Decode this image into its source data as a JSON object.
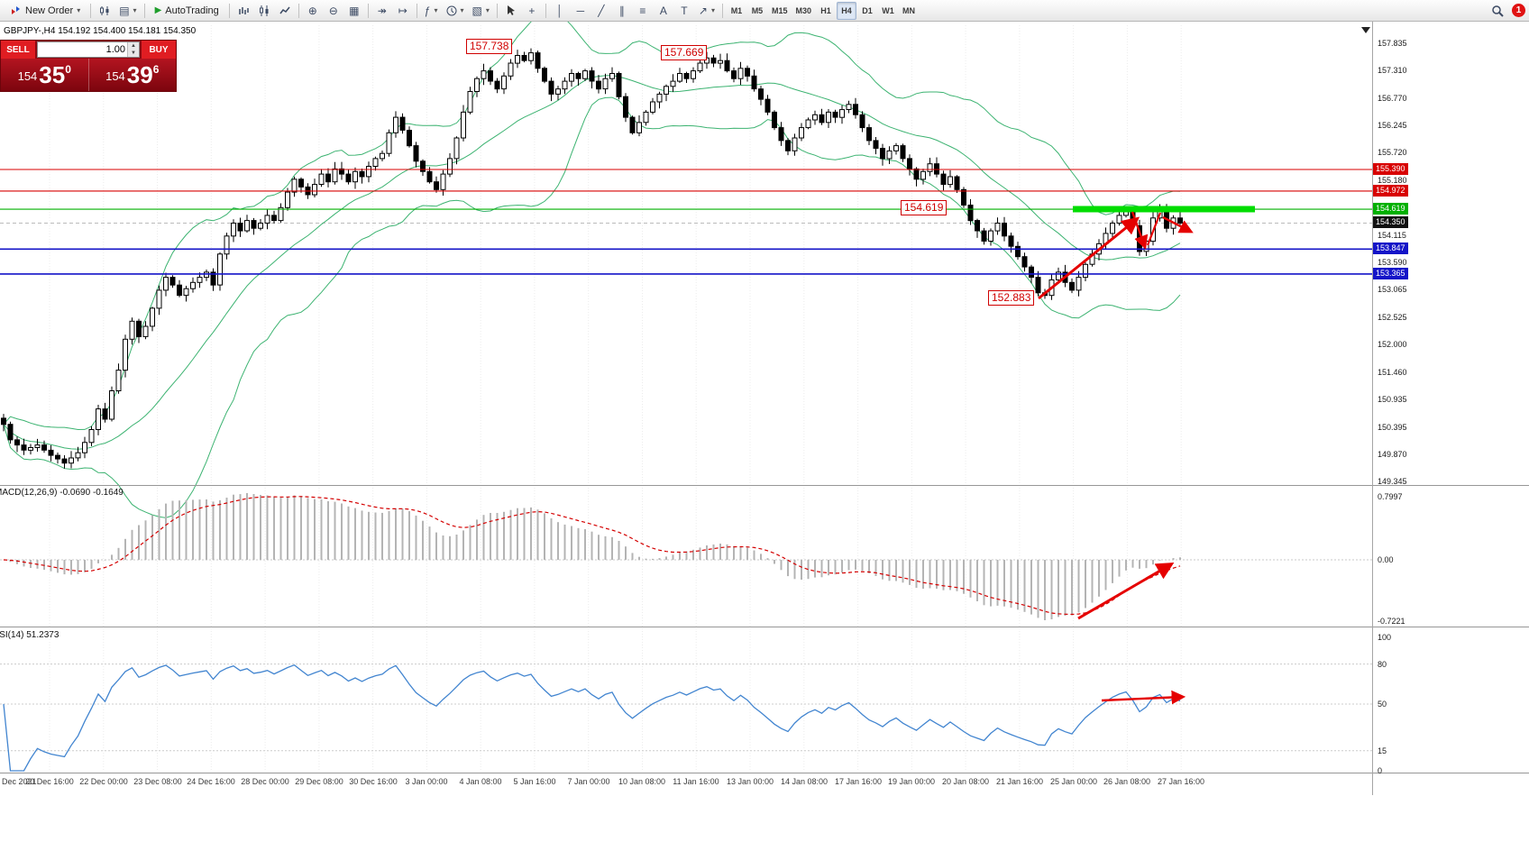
{
  "toolbar": {
    "new_order": "New Order",
    "autotrading": "AutoTrading",
    "timeframes": [
      "M1",
      "M5",
      "M15",
      "M30",
      "H1",
      "H4",
      "D1",
      "W1",
      "MN"
    ],
    "active_timeframe": "H4",
    "notification_count": "1"
  },
  "symbol_header": "GBPJPY-,H4  154.192 154.400 154.181 154.350",
  "trade_panel": {
    "sell_label": "SELL",
    "buy_label": "BUY",
    "volume": "1.00",
    "sell_price": {
      "prefix": "154",
      "big": "35",
      "sup": "0"
    },
    "buy_price": {
      "prefix": "154",
      "big": "39",
      "sup": "6"
    }
  },
  "annotations": [
    {
      "text": "157.738"
    },
    {
      "text": "157.669"
    },
    {
      "text": "154.619"
    },
    {
      "text": "152.883"
    }
  ],
  "price_axis": [
    "157.835",
    "157.310",
    "156.770",
    "156.245",
    "155.720",
    "155.180",
    "154.655",
    "154.115",
    "153.590",
    "153.065",
    "152.525",
    "152.000",
    "151.460",
    "150.935",
    "150.395",
    "149.870",
    "149.345"
  ],
  "time_axis": [
    "Dec 2021",
    "20 Dec 16:00",
    "22 Dec 00:00",
    "23 Dec 08:00",
    "24 Dec 16:00",
    "28 Dec 00:00",
    "29 Dec 08:00",
    "30 Dec 16:00",
    "3 Jan 00:00",
    "4 Jan 08:00",
    "5 Jan 16:00",
    "7 Jan 00:00",
    "10 Jan 08:00",
    "11 Jan 16:00",
    "13 Jan 00:00",
    "14 Jan 08:00",
    "17 Jan 16:00",
    "19 Jan 00:00",
    "20 Jan 08:00",
    "21 Jan 16:00",
    "25 Jan 00:00",
    "26 Jan 08:00",
    "27 Jan 16:00"
  ],
  "macd": {
    "label": "MACD(12,26,9) -0.0690 -0.1649",
    "axis": [
      "0.7997",
      "0.00",
      "-0.7221"
    ]
  },
  "rsi": {
    "label": "RSI(14) 51.2373",
    "axis": [
      "100",
      "80",
      "50",
      "15",
      "0"
    ]
  },
  "chart_data": {
    "type": "candlestick",
    "symbol": "GBPJPY",
    "timeframe": "H4",
    "ohlc_header": {
      "open": "154.192",
      "high": "154.400",
      "low": "154.181",
      "close": "154.350"
    },
    "ylim": [
      149.345,
      157.835
    ],
    "closes": [
      150.45,
      150.15,
      150.05,
      149.95,
      150.0,
      150.05,
      149.95,
      149.85,
      149.78,
      149.7,
      149.8,
      149.9,
      150.1,
      150.35,
      150.75,
      150.55,
      151.1,
      151.5,
      152.1,
      152.45,
      152.15,
      152.35,
      152.7,
      153.05,
      153.3,
      153.15,
      152.95,
      153.08,
      153.2,
      153.3,
      153.4,
      153.15,
      153.75,
      154.1,
      154.35,
      154.2,
      154.4,
      154.25,
      154.35,
      154.5,
      154.4,
      154.65,
      154.95,
      155.2,
      155.05,
      154.9,
      155.1,
      155.3,
      155.15,
      155.4,
      155.3,
      155.15,
      155.35,
      155.25,
      155.45,
      155.6,
      155.7,
      156.1,
      156.4,
      156.15,
      155.85,
      155.55,
      155.35,
      155.15,
      155.0,
      155.3,
      155.6,
      156.0,
      156.5,
      156.9,
      157.15,
      157.3,
      157.1,
      156.95,
      157.2,
      157.45,
      157.6,
      157.5,
      157.65,
      157.35,
      157.1,
      156.85,
      156.95,
      157.1,
      157.25,
      157.15,
      157.3,
      157.1,
      156.95,
      157.15,
      157.25,
      156.8,
      156.4,
      156.1,
      156.3,
      156.5,
      156.7,
      156.85,
      157.0,
      157.1,
      157.25,
      157.15,
      157.3,
      157.45,
      157.55,
      157.45,
      157.5,
      157.3,
      157.15,
      157.35,
      157.2,
      156.95,
      156.75,
      156.5,
      156.2,
      155.95,
      155.75,
      156.0,
      156.2,
      156.35,
      156.45,
      156.3,
      156.5,
      156.4,
      156.55,
      156.65,
      156.45,
      156.2,
      155.95,
      155.8,
      155.6,
      155.75,
      155.85,
      155.6,
      155.4,
      155.2,
      155.35,
      155.5,
      155.3,
      155.1,
      155.25,
      155.0,
      154.7,
      154.4,
      154.2,
      154.0,
      154.2,
      154.35,
      154.1,
      153.9,
      153.7,
      153.5,
      153.3,
      153.0,
      152.95,
      153.25,
      153.4,
      153.2,
      153.05,
      153.3,
      153.55,
      153.75,
      153.95,
      154.15,
      154.35,
      154.5,
      154.6,
      154.3,
      153.8,
      154.0,
      154.45,
      154.6,
      154.25,
      154.45,
      154.35
    ],
    "anchor_extremes": [
      {
        "bar": 78,
        "high": 157.738
      },
      {
        "bar": 104,
        "high": 157.669
      },
      {
        "bar": 154,
        "low": 152.883
      }
    ],
    "overlays": {
      "bollinger": {
        "period": 20,
        "deviation": 2,
        "color": "#3cb371"
      },
      "horizontal_levels": [
        {
          "value": 155.39,
          "label": "155.390",
          "color": "#d80000"
        },
        {
          "value": 154.972,
          "label": "154.972",
          "color": "#d80000"
        },
        {
          "value": 154.619,
          "label": "154.619",
          "color": "#00b000"
        },
        {
          "value": 153.847,
          "label": "153.847",
          "color": "#1414c8"
        },
        {
          "value": 153.365,
          "label": "153.365",
          "color": "#1414c8"
        }
      ],
      "current_price": {
        "value": 154.35,
        "label": "154.350"
      },
      "highlight_zone": {
        "value": 154.62,
        "color": "#00dd00"
      }
    },
    "macd": {
      "fast": 12,
      "slow": 26,
      "signal": 9,
      "ylim": [
        -0.7221,
        0.7997
      ]
    },
    "rsi": {
      "period": 14,
      "current": 51.2373
    }
  }
}
